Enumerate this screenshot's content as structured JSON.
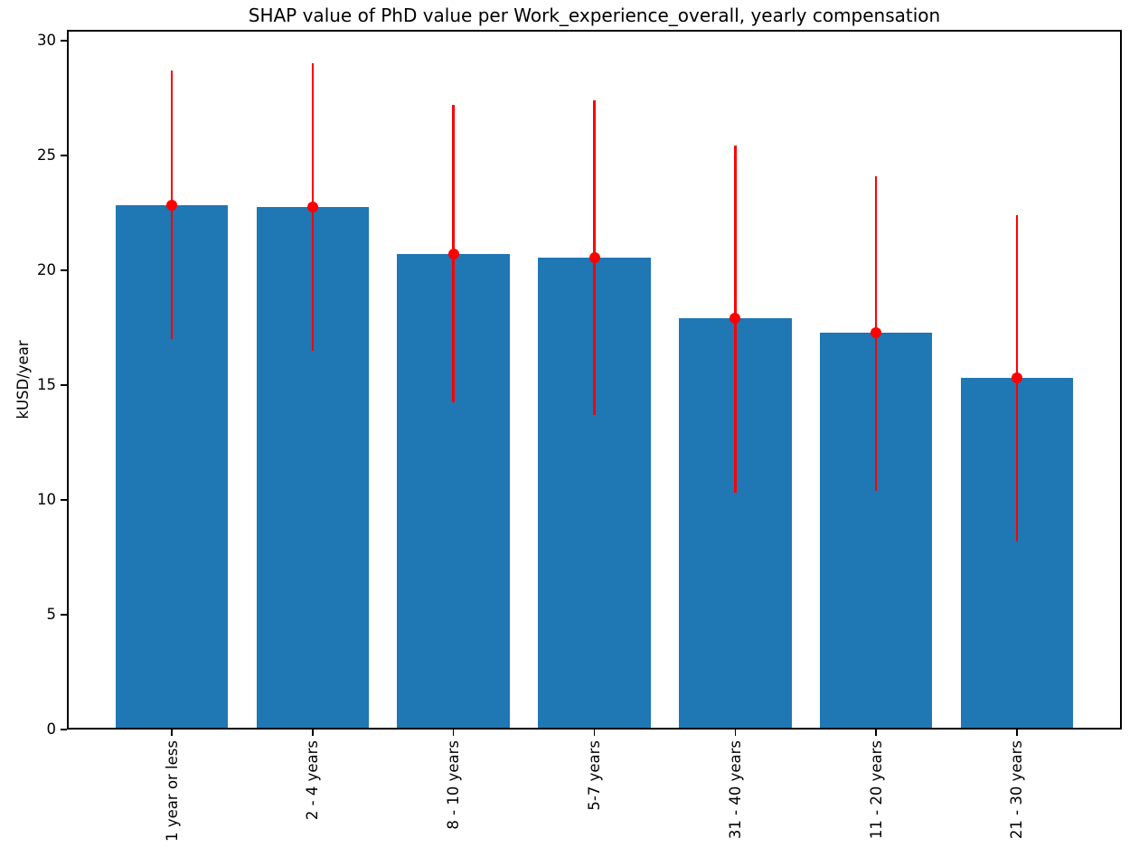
{
  "title": "SHAP value of PhD value per Work_experience_overall, yearly compensation",
  "chart_data": {
    "type": "bar",
    "title": "SHAP value of PhD value per Work_experience_overall, yearly compensation",
    "xlabel": "",
    "ylabel": "kUSD/year",
    "categories": [
      "1 year or less",
      "2 - 4 years",
      "8 - 10 years",
      "5-7 years",
      "31 - 40 years",
      "11 - 20 years",
      "21 - 30 years"
    ],
    "values": [
      22.85,
      22.75,
      20.7,
      20.55,
      17.9,
      17.3,
      15.3
    ],
    "error_upper": [
      28.7,
      29.0,
      27.2,
      27.4,
      25.45,
      24.1,
      22.4
    ],
    "error_lower": [
      17.0,
      16.5,
      14.25,
      13.7,
      10.3,
      10.4,
      8.2
    ],
    "yticks": [
      0,
      5,
      10,
      15,
      20,
      25,
      30
    ],
    "ylim": [
      0,
      30.47
    ],
    "grid": false,
    "legend": null,
    "bar_color": "#1f77b4",
    "error_color": "#ff0000",
    "spine_color": "#000000",
    "background_color": "#ffffff"
  }
}
